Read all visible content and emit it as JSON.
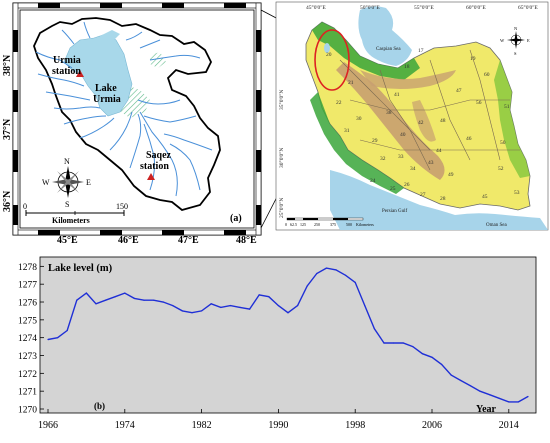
{
  "panel_a": {
    "panel_label": "(a)",
    "station_urmia": "Urmia",
    "station_urmia_2": "station",
    "lake_label": "Lake",
    "lake_label_2": "Urmia",
    "station_saqez": "Saqez",
    "station_saqez_2": "station",
    "scale_label": "Kilometers",
    "scale_min": "0",
    "scale_max": "150",
    "compass": {
      "n": "N",
      "s": "S",
      "e": "E",
      "w": "W"
    },
    "lat_ticks": [
      "38°N",
      "37°N",
      "36°N"
    ],
    "lon_ticks": [
      "45°E",
      "46°E",
      "47°E",
      "48°E"
    ],
    "colors": {
      "lake": "#a8d8ea",
      "rivers": "#4a90d9",
      "station_marker": "#cc2222"
    }
  },
  "iran_map": {
    "sea_labels": [
      "Caspian Sea",
      "Persian Gulf",
      "Oman Sea"
    ],
    "lon_ticks": [
      "45°0'0\"E",
      "50°0'0\"E",
      "55°0'0\"E",
      "60°0'0\"E",
      "65°0'0\"E"
    ],
    "lat_ticks": [
      "35°0'0\"N",
      "30°0'0\"N",
      "25°0'0\"N"
    ],
    "scale_ticks": [
      "0",
      "62.5",
      "125",
      "250",
      "375",
      "500"
    ],
    "scale_label": "Kilometers",
    "basin_numbers": [
      "17",
      "18",
      "19",
      "20",
      "21",
      "22",
      "24",
      "25",
      "26",
      "27",
      "28",
      "29",
      "30",
      "31",
      "32",
      "33",
      "34",
      "38",
      "40",
      "41",
      "42",
      "43",
      "44",
      "45",
      "46",
      "47",
      "48",
      "49",
      "50",
      "51",
      "52",
      "53",
      "56",
      "60"
    ],
    "compass": {
      "n": "N",
      "s": "S",
      "e": "E",
      "w": "W"
    },
    "colors": {
      "sea": "#a7d4ea",
      "lowland": "#3aa63a",
      "plateau": "#f0e96a",
      "mountain": "#c8a070",
      "highlight_circle": "#dd2222"
    }
  },
  "chart_data": {
    "type": "line",
    "title": "Lake level (m)",
    "panel_label": "(b)",
    "xlabel": "Year",
    "x": [
      1966,
      1967,
      1968,
      1969,
      1970,
      1971,
      1972,
      1973,
      1974,
      1975,
      1976,
      1977,
      1978,
      1979,
      1980,
      1981,
      1982,
      1983,
      1984,
      1985,
      1986,
      1987,
      1988,
      1989,
      1990,
      1991,
      1992,
      1993,
      1994,
      1995,
      1996,
      1997,
      1998,
      1999,
      2000,
      2001,
      2002,
      2003,
      2004,
      2005,
      2006,
      2007,
      2008,
      2009,
      2010,
      2011,
      2012,
      2013,
      2014,
      2015,
      2016
    ],
    "values": [
      1273.9,
      1274.0,
      1274.4,
      1276.1,
      1276.5,
      1275.9,
      1276.1,
      1276.3,
      1276.5,
      1276.2,
      1276.1,
      1276.1,
      1276.0,
      1275.8,
      1275.5,
      1275.4,
      1275.5,
      1275.9,
      1275.7,
      1275.8,
      1275.7,
      1275.6,
      1276.4,
      1276.3,
      1275.8,
      1275.4,
      1275.8,
      1276.9,
      1277.6,
      1277.9,
      1277.8,
      1277.5,
      1277.1,
      1275.8,
      1274.5,
      1273.7,
      1273.7,
      1273.7,
      1273.5,
      1273.1,
      1272.9,
      1272.5,
      1271.9,
      1271.6,
      1271.3,
      1271.0,
      1270.8,
      1270.6,
      1270.4,
      1270.4,
      1270.7
    ],
    "x_ticks": [
      1966,
      1974,
      1982,
      1990,
      1998,
      2006,
      2014
    ],
    "y_ticks": [
      1270,
      1271,
      1272,
      1273,
      1274,
      1275,
      1276,
      1277,
      1278
    ],
    "xlim": [
      1966,
      2016
    ],
    "ylim": [
      1270,
      1278.3
    ],
    "grid": false,
    "line_color": "#1f2fd6",
    "background": "#d4d4d4"
  }
}
